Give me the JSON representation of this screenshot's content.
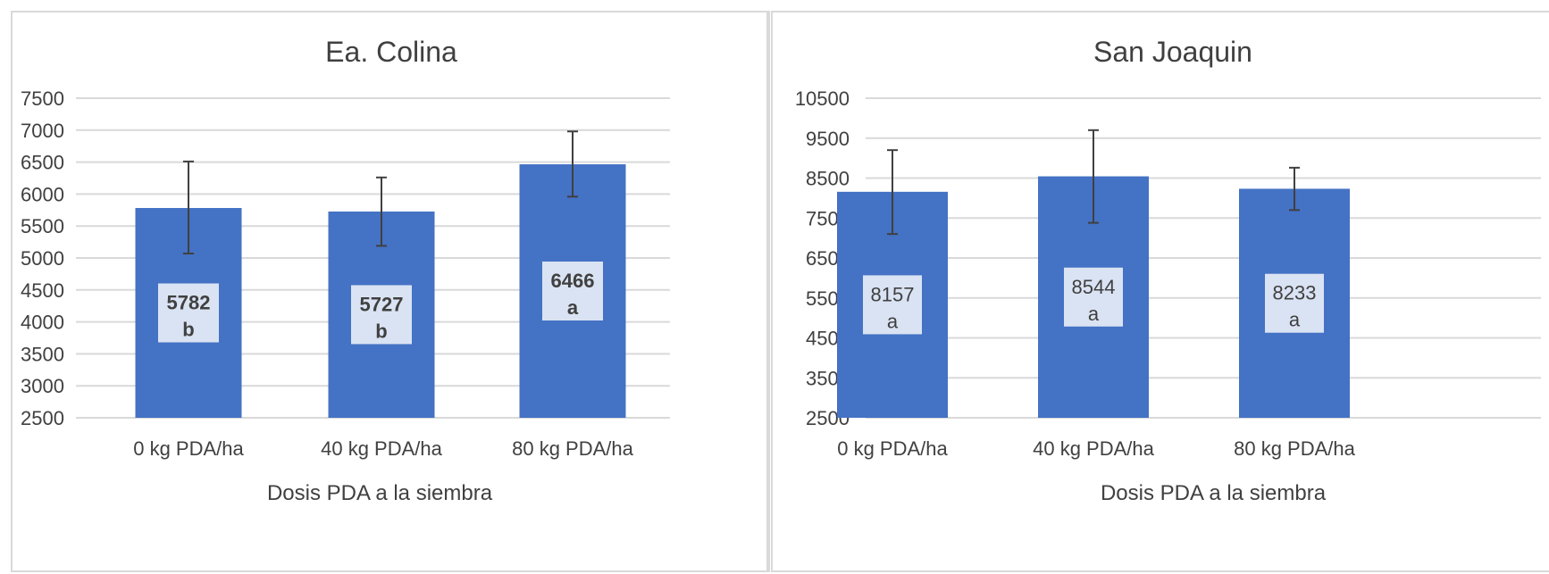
{
  "colors": {
    "bar": "#4472c4",
    "label_box": "#dae3f3",
    "grid": "#d9d9d9",
    "error_bar": "#404040",
    "text": "#404040"
  },
  "chart_data": [
    {
      "type": "bar",
      "title": "Ea. Colina",
      "xlabel": "Dosis PDA a la siembra",
      "ylabel": "",
      "categories": [
        "0 kg PDA/ha",
        "40 kg PDA/ha",
        "80 kg PDA/ha"
      ],
      "values": [
        5782,
        5727,
        6466
      ],
      "error": [
        {
          "low": 5070,
          "high": 6510
        },
        {
          "low": 5190,
          "high": 6260
        },
        {
          "low": 5960,
          "high": 6980
        }
      ],
      "letters": [
        "b",
        "b",
        "a"
      ],
      "label_bold": true,
      "ylim": [
        2500,
        7500
      ],
      "yticks": [
        2500,
        3000,
        3500,
        4000,
        4500,
        5000,
        5500,
        6000,
        6500,
        7000,
        7500
      ],
      "grid": true
    },
    {
      "type": "bar",
      "title": "San Joaquin",
      "xlabel": "Dosis PDA a la siembra",
      "ylabel": "",
      "categories": [
        "0 kg PDA/ha",
        "40 kg PDA/ha",
        "80 kg PDA/ha"
      ],
      "values": [
        8157,
        8544,
        8233
      ],
      "error": [
        {
          "low": 7100,
          "high": 9200
        },
        {
          "low": 7380,
          "high": 9700
        },
        {
          "low": 7700,
          "high": 8760
        }
      ],
      "letters": [
        "a",
        "a",
        "a"
      ],
      "label_bold": false,
      "ylim": [
        2500,
        10500
      ],
      "yticks": [
        2500,
        3500,
        4500,
        5500,
        6500,
        7500,
        8500,
        9500,
        10500
      ],
      "grid": true
    }
  ]
}
